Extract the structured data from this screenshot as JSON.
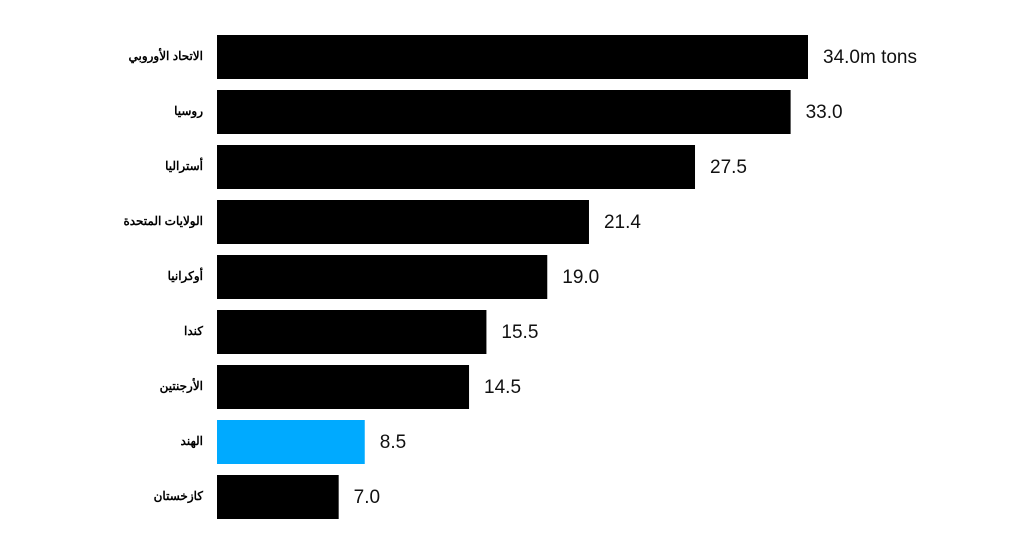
{
  "chart_data": {
    "type": "bar",
    "orientation": "horizontal",
    "categories": [
      "الاتحاد الأوروبي",
      "روسيا",
      "أستراليا",
      "الولايات المتحدة",
      "أوكرانيا",
      "كندا",
      "الأرجنتين",
      "الهند",
      "كازخستان"
    ],
    "values": [
      34.0,
      33.0,
      27.5,
      21.4,
      19.0,
      15.5,
      14.5,
      8.5,
      7.0
    ],
    "value_labels": [
      "34.0m tons",
      "33.0",
      "27.5",
      "21.4",
      "19.0",
      "15.5",
      "14.5",
      "8.5",
      "7.0"
    ],
    "colors": [
      "#000000",
      "#000000",
      "#000000",
      "#000000",
      "#000000",
      "#000000",
      "#000000",
      "#00aaff",
      "#000000"
    ]
  }
}
